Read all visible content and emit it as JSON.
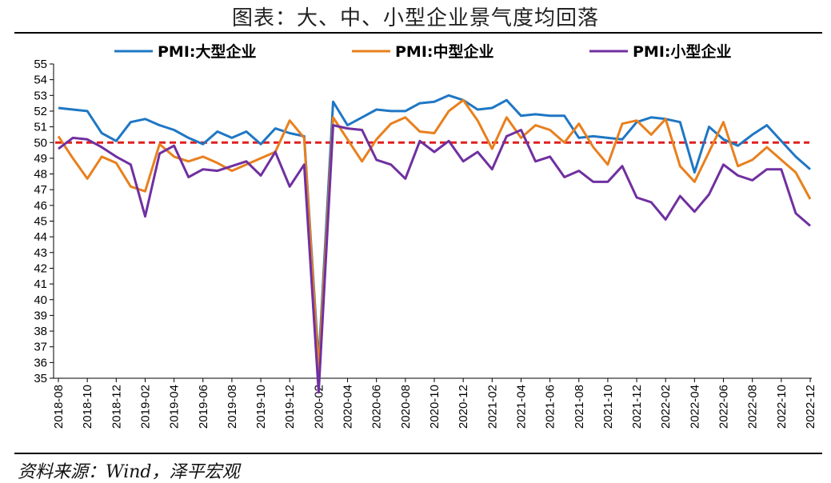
{
  "title": "图表：大、中、小型企业景气度均回落",
  "source": "资料来源：Wind，泽平宏观",
  "colors": {
    "large": "#1f77c4",
    "medium": "#e8801e",
    "small": "#7030a0",
    "reference": "#e02020"
  },
  "chart_data": {
    "type": "line",
    "title": "图表：大、中、小型企业景气度均回落",
    "xlabel": "",
    "ylabel": "",
    "ylim": [
      35,
      55
    ],
    "grid": false,
    "legend_position": "top",
    "x": [
      "2018-08",
      "2018-09",
      "2018-10",
      "2018-11",
      "2018-12",
      "2019-01",
      "2019-02",
      "2019-03",
      "2019-04",
      "2019-05",
      "2019-06",
      "2019-07",
      "2019-08",
      "2019-09",
      "2019-10",
      "2019-11",
      "2019-12",
      "2020-01",
      "2020-02",
      "2020-03",
      "2020-04",
      "2020-05",
      "2020-06",
      "2020-07",
      "2020-08",
      "2020-09",
      "2020-10",
      "2020-11",
      "2020-12",
      "2021-01",
      "2021-02",
      "2021-03",
      "2021-04",
      "2021-05",
      "2021-06",
      "2021-07",
      "2021-08",
      "2021-09",
      "2021-10",
      "2021-11",
      "2021-12",
      "2022-01",
      "2022-02",
      "2022-03",
      "2022-04",
      "2022-05",
      "2022-06",
      "2022-07",
      "2022-08",
      "2022-09",
      "2022-10",
      "2022-11",
      "2022-12"
    ],
    "x_tick_labels": [
      "2018-08",
      "2018-10",
      "2018-12",
      "2019-02",
      "2019-04",
      "2019-06",
      "2019-08",
      "2019-10",
      "2019-12",
      "2020-02",
      "2020-04",
      "2020-06",
      "2020-08",
      "2020-10",
      "2020-12",
      "2021-02",
      "2021-04",
      "2021-06",
      "2021-08",
      "2021-10",
      "2021-12",
      "2022-02",
      "2022-04",
      "2022-06",
      "2022-08",
      "2022-10",
      "2022-12"
    ],
    "y_ticks": [
      35,
      36,
      37,
      38,
      39,
      40,
      41,
      42,
      43,
      44,
      45,
      46,
      47,
      48,
      49,
      50,
      51,
      52,
      53,
      54,
      55
    ],
    "reference_line": 50,
    "series": [
      {
        "name": "PMI:大型企业",
        "color": "#1f77c4",
        "values": [
          52.2,
          52.1,
          52.0,
          50.6,
          50.1,
          51.3,
          51.5,
          51.1,
          50.8,
          50.3,
          49.9,
          50.7,
          50.3,
          50.7,
          49.9,
          50.9,
          50.6,
          50.4,
          36.0,
          52.6,
          51.1,
          51.6,
          52.1,
          52.0,
          52.0,
          52.5,
          52.6,
          53.0,
          52.7,
          52.1,
          52.2,
          52.7,
          51.7,
          51.8,
          51.7,
          51.7,
          50.3,
          50.4,
          50.3,
          50.2,
          51.3,
          51.6,
          51.5,
          51.3,
          48.1,
          51.0,
          50.2,
          49.8,
          50.5,
          51.1,
          50.1,
          49.1,
          48.3
        ]
      },
      {
        "name": "PMI:中型企业",
        "color": "#e8801e",
        "values": [
          50.4,
          49.0,
          47.7,
          49.1,
          48.7,
          47.2,
          46.9,
          49.9,
          49.1,
          48.8,
          49.1,
          48.7,
          48.2,
          48.6,
          49.0,
          49.4,
          51.4,
          50.3,
          35.5,
          51.6,
          50.2,
          48.8,
          50.2,
          51.2,
          51.6,
          50.7,
          50.6,
          52.0,
          52.7,
          51.4,
          49.6,
          51.6,
          50.3,
          51.1,
          50.8,
          50.0,
          51.2,
          49.7,
          48.6,
          51.2,
          51.4,
          50.5,
          51.5,
          48.5,
          47.5,
          49.4,
          51.3,
          48.5,
          48.9,
          49.7,
          48.9,
          48.1,
          46.4
        ]
      },
      {
        "name": "PMI:小型企业",
        "color": "#7030a0",
        "values": [
          49.6,
          50.3,
          50.2,
          49.7,
          49.1,
          48.6,
          45.3,
          49.3,
          49.8,
          47.8,
          48.3,
          48.2,
          48.5,
          48.8,
          47.9,
          49.4,
          47.2,
          48.6,
          34.1,
          51.1,
          50.9,
          50.8,
          48.9,
          48.6,
          47.7,
          50.1,
          49.4,
          50.1,
          48.8,
          49.4,
          48.3,
          50.4,
          50.8,
          48.8,
          49.1,
          47.8,
          48.2,
          47.5,
          47.5,
          48.5,
          46.5,
          46.2,
          45.1,
          46.6,
          45.6,
          46.7,
          48.6,
          47.9,
          47.6,
          48.3,
          48.3,
          45.5,
          44.7
        ]
      }
    ]
  }
}
